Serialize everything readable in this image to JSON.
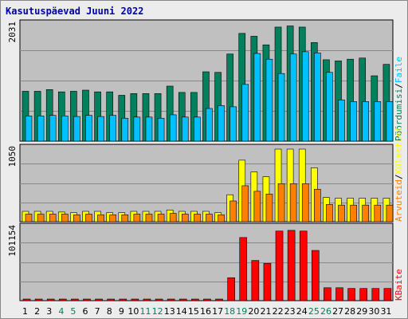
{
  "title": "Kasutuspäevad Juuni 2022",
  "colors": {
    "background": "#ececec",
    "panel": "#c0c0c0",
    "hits": "#00805c",
    "files": "#00c0ff",
    "pages": "#ffff00",
    "visits": "#ff8000",
    "kbytes": "#ff0000",
    "weekend_label": "#00805c",
    "weekday_label": "#000000"
  },
  "chart_data": [
    {
      "type": "bar",
      "panel": "top",
      "ymax_label": "2031",
      "ylim": [
        0,
        2031
      ],
      "legend": [
        {
          "label": "Pöördumisi",
          "color": "#00805c"
        },
        {
          "label": "Faile",
          "color": "#00c0ff"
        }
      ],
      "separator": "/",
      "series": [
        {
          "name": "Pöördumisi",
          "values": [
            870,
            870,
            900,
            860,
            870,
            890,
            860,
            860,
            800,
            830,
            830,
            830,
            960,
            850,
            850,
            1210,
            1200,
            1520,
            1880,
            1830,
            1680,
            1990,
            2010,
            1990,
            1720,
            1420,
            1400,
            1430,
            1450,
            1140,
            1340
          ]
        },
        {
          "name": "Faile",
          "values": [
            440,
            440,
            450,
            440,
            430,
            450,
            430,
            450,
            400,
            420,
            420,
            400,
            460,
            420,
            420,
            570,
            620,
            600,
            990,
            1530,
            1430,
            1180,
            1520,
            1560,
            1540,
            1200,
            720,
            690,
            690,
            690,
            690
          ]
        }
      ]
    },
    {
      "type": "bar",
      "panel": "middle",
      "ymax_label": "1050",
      "ylim": [
        0,
        1050
      ],
      "legend": [
        {
          "label": "Arvuteid",
          "color": "#ff8000"
        },
        {
          "label": "Külastusi",
          "color": "#ffff00"
        }
      ],
      "separator": "/",
      "series": [
        {
          "name": "Külastusi",
          "values": [
            150,
            150,
            150,
            140,
            130,
            150,
            150,
            130,
            130,
            150,
            150,
            150,
            170,
            150,
            150,
            150,
            130,
            390,
            890,
            720,
            650,
            1050,
            1050,
            1050,
            780,
            350,
            340,
            340,
            340,
            340,
            340
          ]
        },
        {
          "name": "Arvuteid",
          "values": [
            110,
            110,
            110,
            110,
            100,
            110,
            100,
            100,
            100,
            110,
            110,
            110,
            120,
            110,
            110,
            110,
            100,
            300,
            520,
            440,
            400,
            550,
            550,
            550,
            470,
            250,
            240,
            240,
            240,
            240,
            240
          ]
        }
      ]
    },
    {
      "type": "bar",
      "panel": "bottom",
      "ymax_label": "101154",
      "ylim": [
        0,
        101154
      ],
      "legend": [
        {
          "label": "KBaite",
          "color": "#ff0000"
        }
      ],
      "series": [
        {
          "name": "KBaite",
          "values": [
            1500,
            1500,
            1500,
            1500,
            1500,
            1500,
            1500,
            1500,
            1500,
            1500,
            1500,
            1500,
            1500,
            1500,
            1500,
            1500,
            1500,
            32000,
            88000,
            56000,
            52000,
            97000,
            98000,
            97000,
            70000,
            18000,
            18000,
            17000,
            17000,
            17000,
            17000
          ]
        }
      ]
    }
  ],
  "x_ticks": [
    "1",
    "2",
    "3",
    "4",
    "5",
    "6",
    "7",
    "8",
    "9",
    "10",
    "11",
    "12",
    "13",
    "14",
    "15",
    "16",
    "17",
    "18",
    "19",
    "20",
    "21",
    "22",
    "23",
    "24",
    "25",
    "26",
    "27",
    "28",
    "29",
    "30",
    "31"
  ],
  "weekend_days": [
    4,
    5,
    11,
    12,
    18,
    19,
    25,
    26
  ]
}
